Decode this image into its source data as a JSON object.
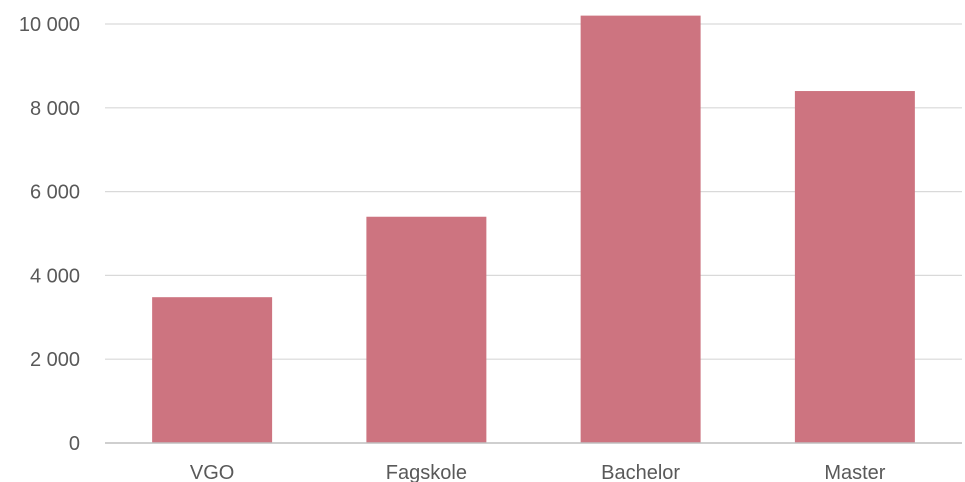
{
  "chart_data": {
    "type": "bar",
    "title": "",
    "xlabel": "",
    "ylabel": "",
    "categories": [
      "VGO",
      "Fagskole",
      "Bachelor",
      "Master"
    ],
    "values": [
      3480,
      5400,
      10200,
      8400
    ],
    "ylim": [
      0,
      10000
    ],
    "yticks": [
      0,
      2000,
      4000,
      6000,
      8000,
      10000
    ],
    "ytick_labels": [
      "0",
      "2 000",
      "4 000",
      "6 000",
      "8 000",
      "10 000"
    ],
    "grid": true,
    "legend": "none",
    "bar_color": "#cd7480"
  }
}
